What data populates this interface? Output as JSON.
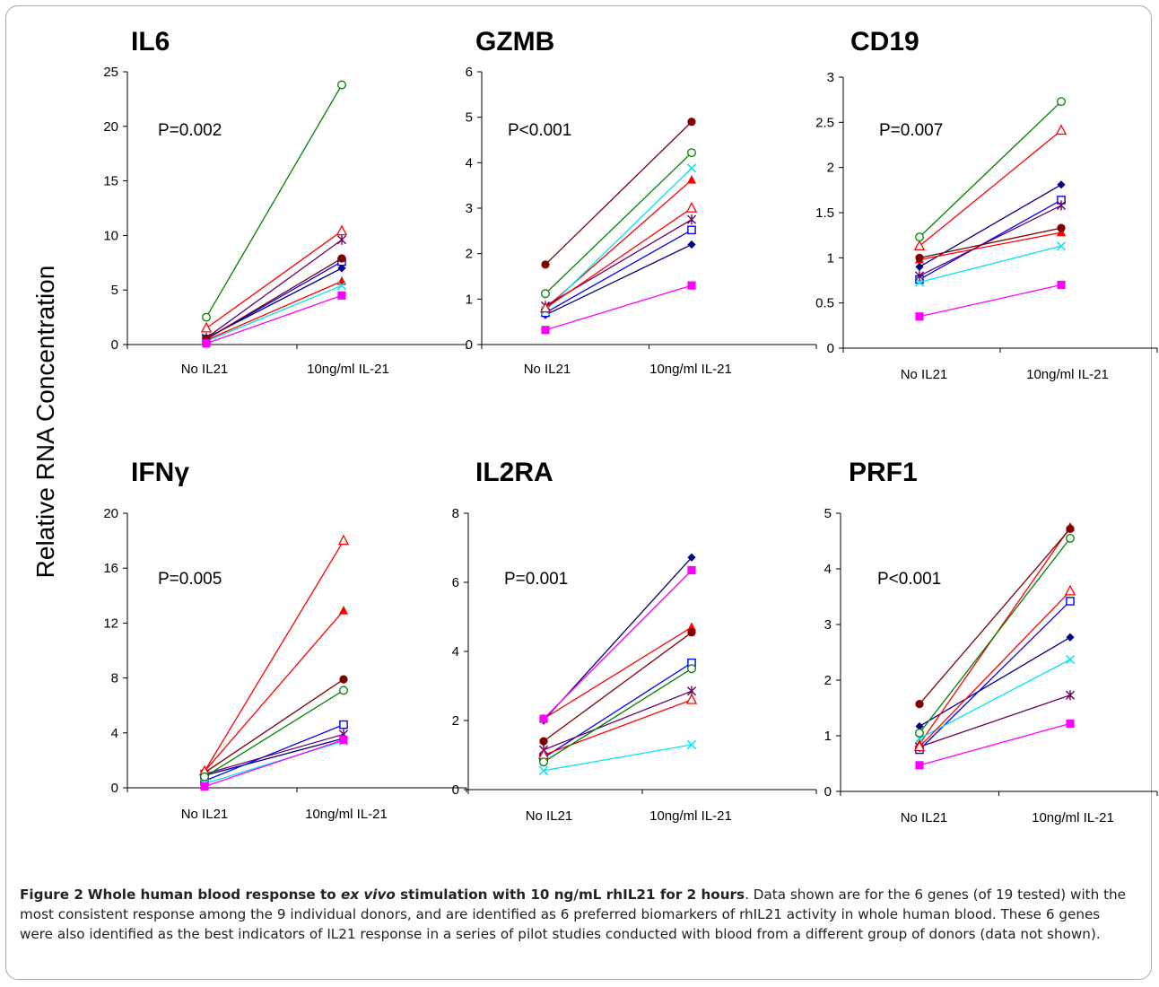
{
  "y_axis_label": "Relative RNA Concentration",
  "caption": {
    "label": "Figure 2",
    "title_before_italic": "Whole human blood response to ",
    "title_italic": "ex vivo",
    "title_after_italic": " stimulation with 10 ng/mL rhIL21 for 2 hours",
    "body": ". Data shown are for the 6 genes (of 19 tested) with the most consistent response among the 9 individual donors, and are identified as 6 preferred biomarkers of rhIL21 activity in whole human blood. These 6 genes were also identified as the best indicators of IL21 response in a series of pilot studies conducted with blood from a different group of donors (data not shown)."
  },
  "marker_legend": [
    {
      "marker": "filled-diamond",
      "color": "#000080"
    },
    {
      "marker": "open-square",
      "color": "#0000ff"
    },
    {
      "marker": "filled-triangle",
      "color": "#ff0000"
    },
    {
      "marker": "x-cross",
      "color": "#00e5ee"
    },
    {
      "marker": "asterisk",
      "color": "#660066"
    },
    {
      "marker": "filled-circle",
      "color": "#800000"
    },
    {
      "marker": "filled-square",
      "color": "#ff00ff"
    },
    {
      "marker": "open-triangle",
      "color": "#ff0000"
    },
    {
      "marker": "open-circle",
      "color": "#008000"
    }
  ],
  "chart_data": [
    {
      "type": "line",
      "title": "IL6",
      "pvalue": "P=0.002",
      "categories": [
        "No IL21",
        "10ng/ml IL-21"
      ],
      "ylim": [
        0,
        25
      ],
      "yticks": [
        "0",
        "5",
        "10",
        "15",
        "20",
        "25"
      ],
      "series": [
        {
          "values": [
            0.6,
            7.0
          ]
        },
        {
          "values": [
            0.5,
            7.6
          ]
        },
        {
          "values": [
            0.4,
            5.8
          ]
        },
        {
          "values": [
            0.3,
            5.4
          ]
        },
        {
          "values": [
            0.6,
            9.6
          ]
        },
        {
          "values": [
            0.5,
            7.9
          ]
        },
        {
          "values": [
            0.1,
            4.5
          ]
        },
        {
          "values": [
            1.5,
            10.4
          ]
        },
        {
          "values": [
            2.5,
            23.8
          ]
        }
      ]
    },
    {
      "type": "line",
      "title": "GZMB",
      "pvalue": "P<0.001",
      "categories": [
        "No IL21",
        "10ng/ml IL-21"
      ],
      "ylim": [
        0,
        6
      ],
      "yticks": [
        "0",
        "1",
        "2",
        "3",
        "4",
        "5",
        "6"
      ],
      "series": [
        {
          "values": [
            0.65,
            2.2
          ]
        },
        {
          "values": [
            0.7,
            2.52
          ]
        },
        {
          "values": [
            0.8,
            3.62
          ]
        },
        {
          "values": [
            0.75,
            3.88
          ]
        },
        {
          "values": [
            0.85,
            2.75
          ]
        },
        {
          "values": [
            1.76,
            4.9
          ]
        },
        {
          "values": [
            0.32,
            1.3
          ]
        },
        {
          "values": [
            0.8,
            3.0
          ]
        },
        {
          "values": [
            1.12,
            4.22
          ]
        }
      ]
    },
    {
      "type": "line",
      "title": "CD19",
      "pvalue": "P=0.007",
      "categories": [
        "No IL21",
        "10ng/ml IL-21"
      ],
      "ylim": [
        0,
        3
      ],
      "yticks": [
        "0",
        "0.5",
        "1",
        "1.5",
        "2",
        "2.5",
        "3"
      ],
      "series": [
        {
          "values": [
            0.9,
            1.81
          ]
        },
        {
          "values": [
            0.76,
            1.64
          ]
        },
        {
          "values": [
            0.98,
            1.28
          ]
        },
        {
          "values": [
            0.73,
            1.13
          ]
        },
        {
          "values": [
            0.8,
            1.58
          ]
        },
        {
          "values": [
            1.0,
            1.33
          ]
        },
        {
          "values": [
            0.35,
            0.7
          ]
        },
        {
          "values": [
            1.13,
            2.41
          ]
        },
        {
          "values": [
            1.23,
            2.73
          ]
        }
      ]
    },
    {
      "type": "line",
      "title": "IFNγ",
      "pvalue": "P=0.005",
      "categories": [
        "No IL21",
        "10ng/ml IL-21"
      ],
      "ylim": [
        0,
        20
      ],
      "yticks": [
        "0",
        "4",
        "8",
        "12",
        "16",
        "20"
      ],
      "series": [
        {
          "values": [
            0.9,
            3.6
          ]
        },
        {
          "values": [
            0.5,
            4.6
          ]
        },
        {
          "values": [
            1.2,
            12.9
          ]
        },
        {
          "values": [
            0.3,
            3.4
          ]
        },
        {
          "values": [
            1.0,
            3.9
          ]
        },
        {
          "values": [
            1.1,
            7.9
          ]
        },
        {
          "values": [
            0.1,
            3.5
          ]
        },
        {
          "values": [
            1.2,
            18.0
          ]
        },
        {
          "values": [
            0.8,
            7.1
          ]
        }
      ]
    },
    {
      "type": "line",
      "title": "IL2RA",
      "pvalue": "P=0.001",
      "categories": [
        "No IL21",
        "10ng/ml IL-21"
      ],
      "ylim": [
        0,
        8
      ],
      "yticks": [
        "0",
        "2",
        "4",
        "6",
        "8"
      ],
      "series": [
        {
          "values": [
            2.0,
            6.72
          ]
        },
        {
          "values": [
            0.92,
            3.67
          ]
        },
        {
          "values": [
            2.05,
            4.7
          ]
        },
        {
          "values": [
            0.55,
            1.3
          ]
        },
        {
          "values": [
            1.15,
            2.85
          ]
        },
        {
          "values": [
            1.4,
            4.55
          ]
        },
        {
          "values": [
            2.05,
            6.35
          ]
        },
        {
          "values": [
            1.0,
            2.6
          ]
        },
        {
          "values": [
            0.8,
            3.5
          ]
        }
      ]
    },
    {
      "type": "line",
      "title": "PRF1",
      "pvalue": "P<0.001",
      "categories": [
        "No IL21",
        "10ng/ml IL-21"
      ],
      "ylim": [
        0,
        5
      ],
      "yticks": [
        "0",
        "1",
        "2",
        "3",
        "4",
        "5"
      ],
      "series": [
        {
          "values": [
            1.17,
            2.77
          ]
        },
        {
          "values": [
            0.75,
            3.42
          ]
        },
        {
          "values": [
            0.85,
            4.75
          ]
        },
        {
          "values": [
            0.95,
            2.37
          ]
        },
        {
          "values": [
            0.8,
            1.73
          ]
        },
        {
          "values": [
            1.57,
            4.72
          ]
        },
        {
          "values": [
            0.47,
            1.22
          ]
        },
        {
          "values": [
            0.8,
            3.6
          ]
        },
        {
          "values": [
            1.05,
            4.55
          ]
        }
      ]
    }
  ]
}
